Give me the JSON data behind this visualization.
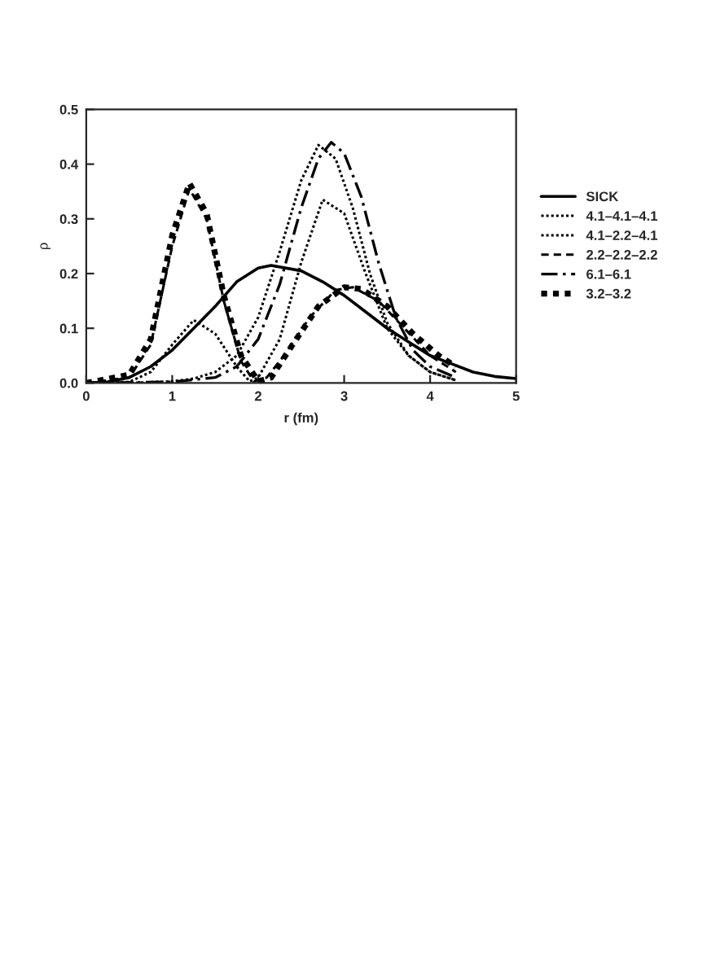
{
  "chart_data": {
    "type": "line",
    "xlabel": "r (fm)",
    "ylabel": "ρ",
    "xlim": [
      0,
      5
    ],
    "xticks": [
      0,
      1,
      2,
      3,
      4,
      5
    ],
    "ylim": [
      0,
      0.5
    ],
    "yticks": [
      {
        "value": 0,
        "label": "0.0"
      },
      0.1,
      0.2,
      0.3,
      0.4,
      0.5
    ],
    "grid": false,
    "legend": "right",
    "series": [
      {
        "name": "SICK",
        "color": "#000000",
        "line_style": "solid",
        "x": [
          0,
          0.25,
          0.5,
          0.75,
          1.0,
          1.25,
          1.5,
          1.75,
          2.0,
          2.15,
          2.5,
          2.75,
          3.0,
          3.25,
          3.5,
          3.75,
          4.0,
          4.25,
          4.5,
          4.75,
          5.0
        ],
        "values": [
          0,
          0.002,
          0.01,
          0.03,
          0.06,
          0.1,
          0.14,
          0.185,
          0.21,
          0.215,
          0.205,
          0.185,
          0.16,
          0.13,
          0.1,
          0.075,
          0.05,
          0.035,
          0.02,
          0.012,
          0.008
        ]
      },
      {
        "name": "4.1–4.1–4.1",
        "color": "#000000",
        "line_style": "dotted",
        "x": [
          0,
          0.5,
          1.0,
          1.25,
          1.5,
          1.75,
          2.0,
          2.25,
          2.5,
          2.7,
          2.9,
          3.1,
          3.3,
          3.5,
          3.75,
          4.0,
          4.3
        ],
        "values": [
          0,
          0,
          0.003,
          0.008,
          0.02,
          0.05,
          0.12,
          0.24,
          0.37,
          0.435,
          0.41,
          0.32,
          0.2,
          0.11,
          0.05,
          0.02,
          0.005
        ]
      },
      {
        "name": "4.1–2.2–4.1",
        "color": "#000000",
        "line_style": "dotted",
        "x": [
          0,
          0.5,
          0.75,
          1.0,
          1.25,
          1.5,
          1.75,
          1.9,
          2.0,
          2.25,
          2.5,
          2.75,
          3.0,
          3.25,
          3.5,
          3.75,
          4.0,
          4.3
        ],
        "values": [
          0,
          0.002,
          0.02,
          0.07,
          0.115,
          0.09,
          0.03,
          0.003,
          0.01,
          0.08,
          0.22,
          0.335,
          0.31,
          0.2,
          0.1,
          0.05,
          0.02,
          0.005
        ]
      },
      {
        "name": "2.2–2.2–2.2",
        "color": "#000000",
        "line_style": "dashed",
        "x": [
          0,
          0.5,
          0.75,
          1.0,
          1.2,
          1.4,
          1.6,
          1.8,
          1.95,
          2.1,
          2.3,
          2.6,
          2.9,
          3.1,
          3.4,
          3.7,
          4.0,
          4.3
        ],
        "values": [
          0,
          0.01,
          0.07,
          0.25,
          0.355,
          0.3,
          0.15,
          0.04,
          0.003,
          0.01,
          0.05,
          0.12,
          0.17,
          0.175,
          0.15,
          0.1,
          0.05,
          0.02
        ]
      },
      {
        "name": "6.1–6.1",
        "color": "#000000",
        "line_style": "dashdot",
        "x": [
          0,
          1.0,
          1.5,
          1.75,
          2.0,
          2.25,
          2.5,
          2.7,
          2.85,
          3.0,
          3.2,
          3.4,
          3.6,
          3.8,
          4.0,
          4.3
        ],
        "values": [
          0,
          0.002,
          0.01,
          0.03,
          0.08,
          0.18,
          0.32,
          0.41,
          0.44,
          0.42,
          0.34,
          0.22,
          0.12,
          0.06,
          0.03,
          0.01
        ]
      },
      {
        "name": "3.2–3.2",
        "color": "#000000",
        "line_style": "heavy_dotted",
        "x": [
          0,
          0.5,
          0.75,
          1.0,
          1.2,
          1.4,
          1.6,
          1.8,
          2.0,
          2.15,
          2.4,
          2.7,
          3.0,
          3.2,
          3.5,
          3.8,
          4.1,
          4.3
        ],
        "values": [
          0,
          0.015,
          0.08,
          0.27,
          0.365,
          0.31,
          0.16,
          0.05,
          0.003,
          0.01,
          0.07,
          0.14,
          0.175,
          0.172,
          0.14,
          0.09,
          0.05,
          0.03
        ]
      }
    ]
  }
}
